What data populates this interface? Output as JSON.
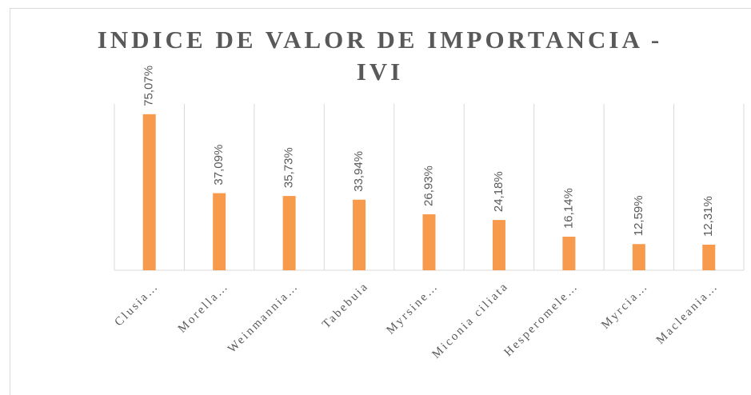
{
  "chart_data": {
    "type": "bar",
    "title": "INDICE DE VALOR DE IMPORTANCIA - IVI",
    "categories": [
      "Clusia…",
      "Morella…",
      "Weinmannia…",
      "Tabebuia",
      "Myrsine…",
      "Miconia ciliata",
      "Hesperomele…",
      "Myrcia…",
      "Macleania…"
    ],
    "values": [
      75.07,
      37.09,
      35.73,
      33.94,
      26.93,
      24.18,
      16.14,
      12.59,
      12.31
    ],
    "value_labels": [
      "75,07%",
      "37,09%",
      "35,73%",
      "33,94%",
      "26,93%",
      "24,18%",
      "16,14%",
      "12,59%",
      "12,31%"
    ],
    "color": "#f79a4b",
    "ylim": [
      0,
      80
    ]
  }
}
